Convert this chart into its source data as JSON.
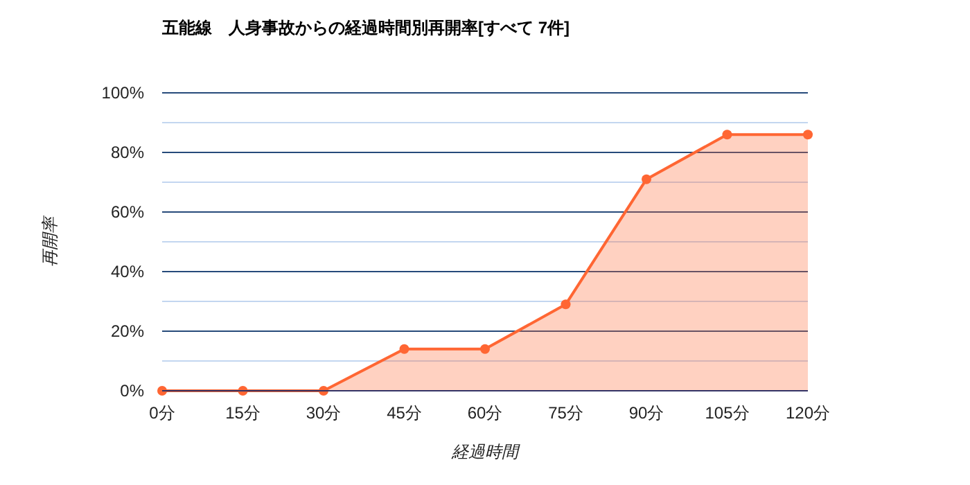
{
  "chart_data": {
    "type": "area",
    "title": "五能線　人身事故からの経過時間別再開率[すべて 7件]",
    "xlabel": "経過時間",
    "ylabel": "再開率",
    "categories": [
      "0分",
      "15分",
      "30分",
      "45分",
      "60分",
      "75分",
      "90分",
      "105分",
      "120分"
    ],
    "series": [
      {
        "color": "#ff6633",
        "values": [
          0,
          0,
          0,
          14,
          14,
          29,
          71,
          86,
          86
        ]
      }
    ],
    "ylim": [
      0,
      100
    ],
    "yticks": [
      {
        "value": 0,
        "label": "0%"
      },
      {
        "value": 10,
        "label": null
      },
      {
        "value": 20,
        "label": "20%"
      },
      {
        "value": 30,
        "label": null
      },
      {
        "value": 40,
        "label": "40%"
      },
      {
        "value": 50,
        "label": null
      },
      {
        "value": 60,
        "label": "60%"
      },
      {
        "value": 70,
        "label": null
      },
      {
        "value": 80,
        "label": "80%"
      },
      {
        "value": 90,
        "label": null
      },
      {
        "value": 100,
        "label": "100%"
      }
    ],
    "grid": "y",
    "marker": "circle",
    "line_style": "solid"
  }
}
